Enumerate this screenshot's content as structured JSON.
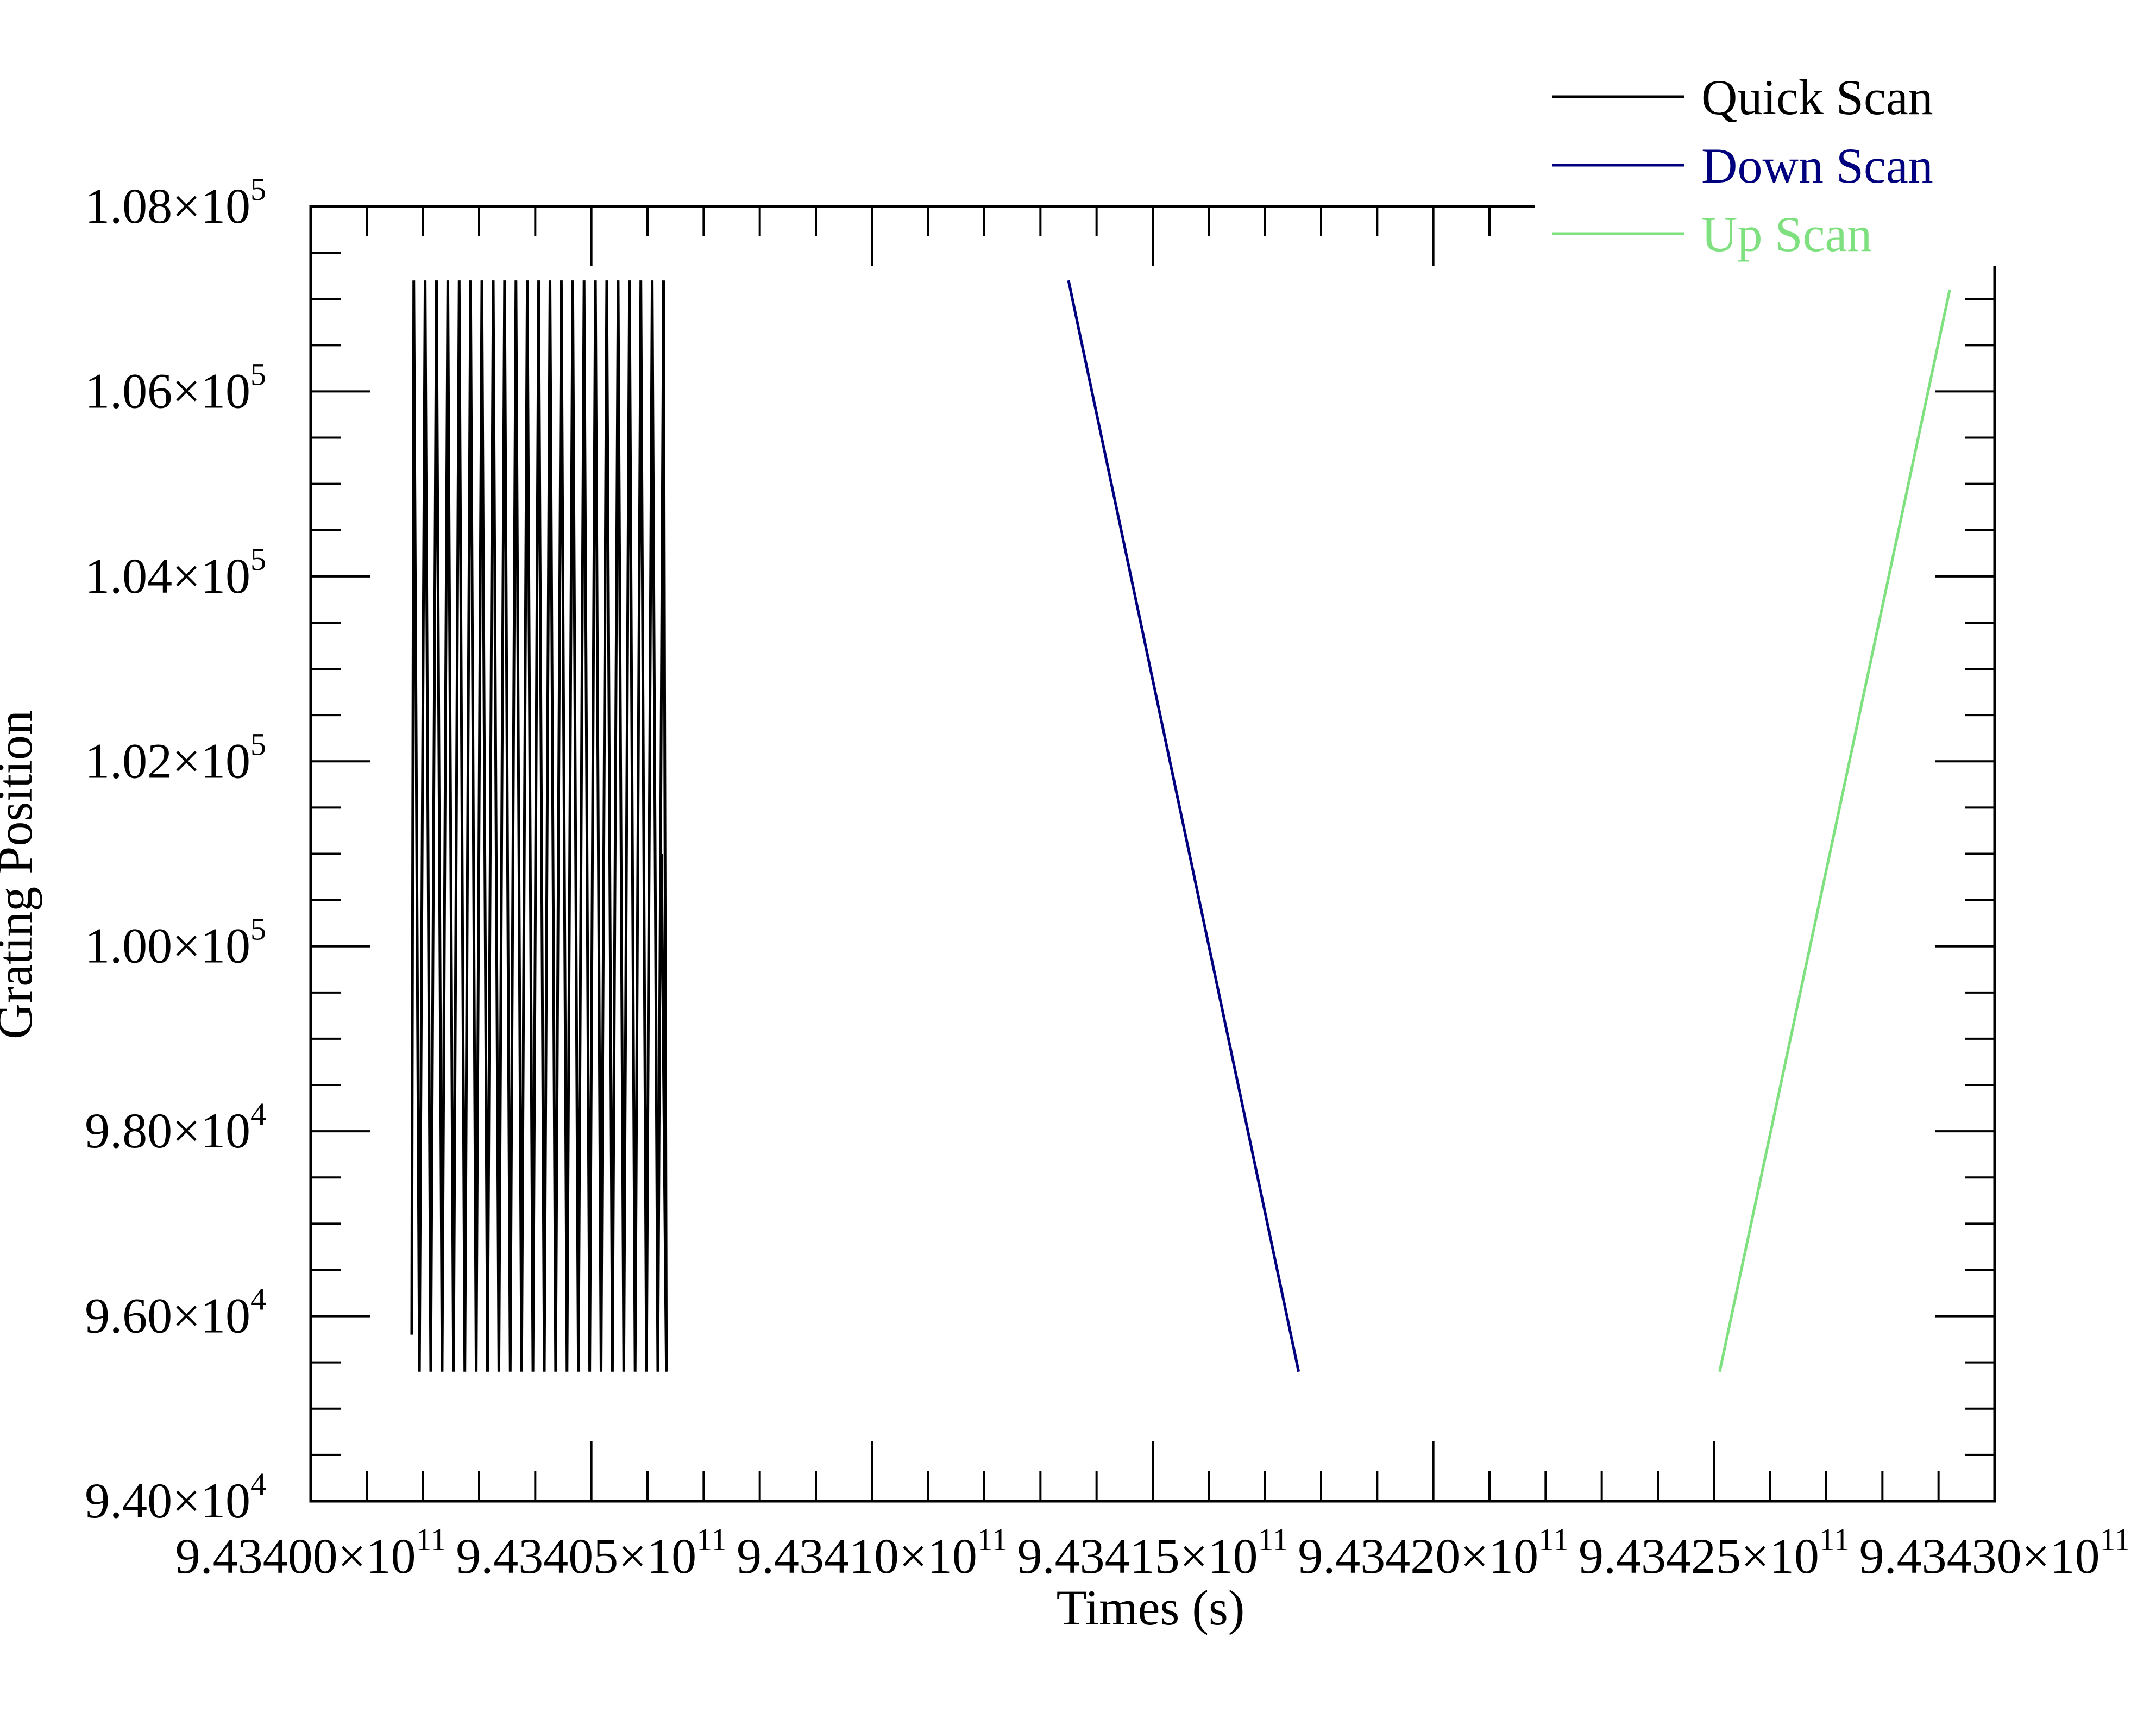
{
  "chart_data": {
    "type": "line",
    "title": "",
    "xlabel": "Times (s)",
    "ylabel": "Grating Position",
    "xlim": [
      943400000000,
      943430000000
    ],
    "ylim": [
      94000,
      108000
    ],
    "x_ticks": [
      {
        "value": 943400000000,
        "mantissa": "9.43400",
        "exponent": "11"
      },
      {
        "value": 943405000000,
        "mantissa": "9.43405",
        "exponent": "11"
      },
      {
        "value": 943410000000,
        "mantissa": "9.43410",
        "exponent": "11"
      },
      {
        "value": 943415000000,
        "mantissa": "9.43415",
        "exponent": "11"
      },
      {
        "value": 943420000000,
        "mantissa": "9.43420",
        "exponent": "11"
      },
      {
        "value": 943425000000,
        "mantissa": "9.43425",
        "exponent": "11"
      },
      {
        "value": 943430000000,
        "mantissa": "9.43430",
        "exponent": "11"
      }
    ],
    "y_ticks": [
      {
        "value": 94000,
        "mantissa": "9.40",
        "exponent": "4"
      },
      {
        "value": 96000,
        "mantissa": "9.60",
        "exponent": "4"
      },
      {
        "value": 98000,
        "mantissa": "9.80",
        "exponent": "4"
      },
      {
        "value": 100000,
        "mantissa": "1.00",
        "exponent": "5"
      },
      {
        "value": 102000,
        "mantissa": "1.02",
        "exponent": "5"
      },
      {
        "value": 104000,
        "mantissa": "1.04",
        "exponent": "5"
      },
      {
        "value": 106000,
        "mantissa": "1.06",
        "exponent": "5"
      },
      {
        "value": 108000,
        "mantissa": "1.08",
        "exponent": "5"
      }
    ],
    "legend": {
      "placement": "top-right"
    },
    "grid": false,
    "series": [
      {
        "name": "Quick Scan",
        "color": "#000000",
        "style": "oscillating",
        "x_start": 943401800000,
        "x_end": 943406250000,
        "y_min": 95400,
        "y_max": 107200,
        "y_first": 95800,
        "y_last": 101000,
        "cycles": 22
      },
      {
        "name": "Down Scan",
        "color": "#00007f",
        "x": [
          943413500000,
          943417600000
        ],
        "y": [
          107200,
          95400
        ]
      },
      {
        "name": "Up Scan",
        "color": "#7fe07f",
        "x": [
          943425100000,
          943429200000
        ],
        "y": [
          95400,
          107100
        ]
      }
    ]
  }
}
